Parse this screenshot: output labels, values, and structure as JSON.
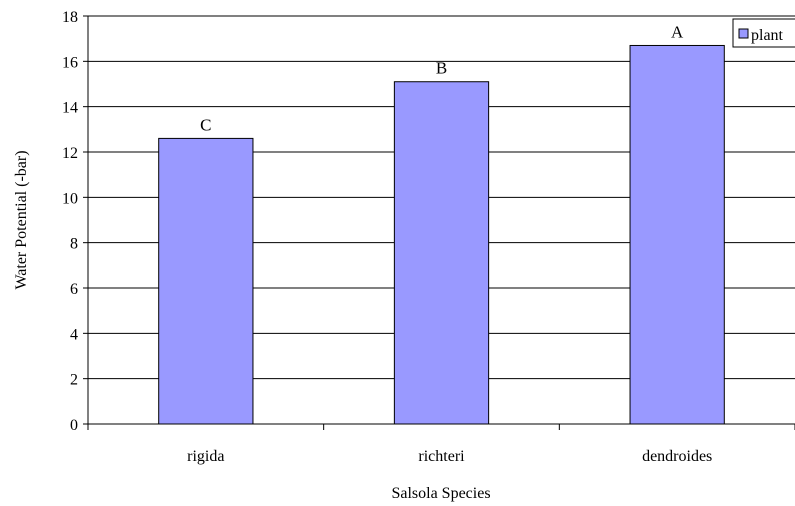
{
  "chart_data": {
    "type": "bar",
    "title": "",
    "xlabel": "Salsola Species",
    "ylabel": "Water Potential (-bar)",
    "categories": [
      "rigida",
      "richteri",
      "dendroides"
    ],
    "series": [
      {
        "name": "plant",
        "values": [
          12.6,
          15.1,
          16.7
        ],
        "color": "#9999ff"
      }
    ],
    "bar_labels": [
      "C",
      "B",
      "A"
    ],
    "ylim": [
      0,
      18
    ],
    "yticks": [
      "0",
      "2",
      "4",
      "6",
      "8",
      "10",
      "12",
      "14",
      "16",
      "18"
    ],
    "grid": true,
    "legend_position": "top-right"
  }
}
